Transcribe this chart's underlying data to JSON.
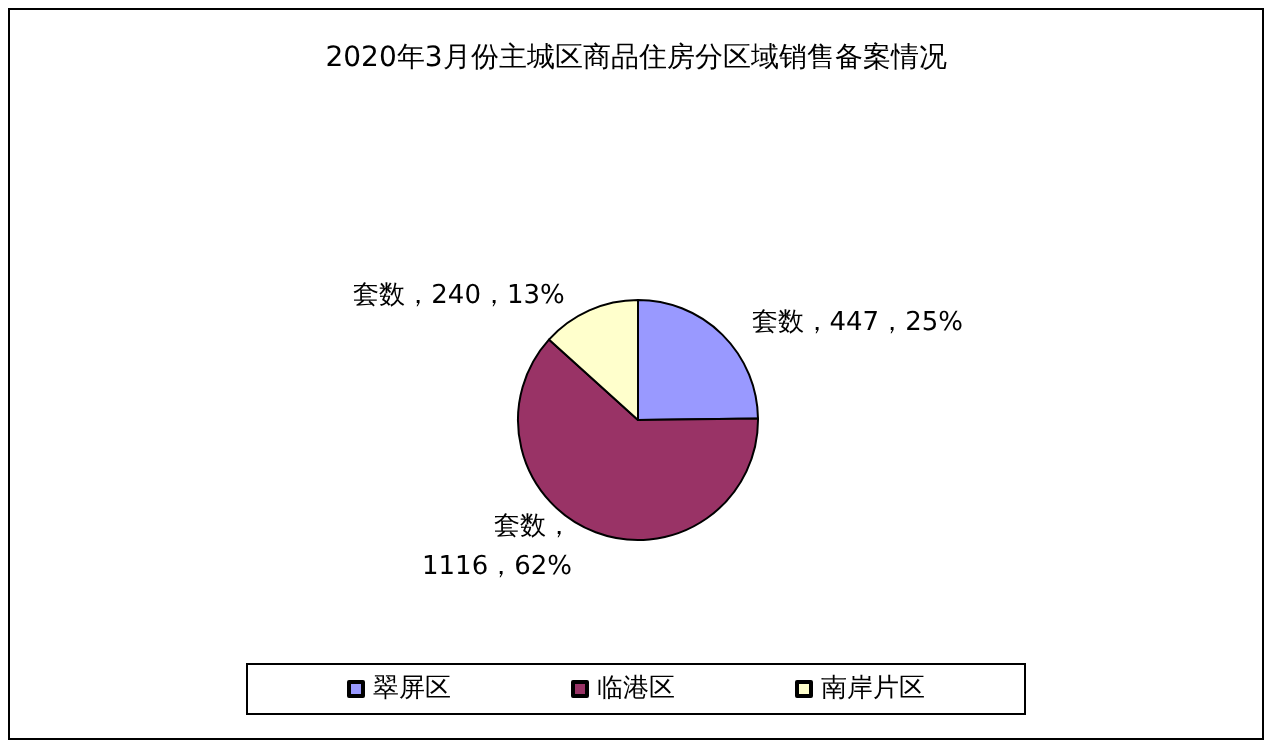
{
  "chart_data": {
    "type": "pie",
    "title": "2020年3月份主城区商品住房分区域销售备案情况",
    "categories": [
      "翠屏区",
      "临港区",
      "南岸片区"
    ],
    "values": [
      447,
      1116,
      240
    ],
    "colors": [
      "#9999ff",
      "#993366",
      "#ffffcc"
    ],
    "value_labels": [
      "套数，447，25%",
      "套数，\n1116，62%",
      "套数，240，13%"
    ],
    "legend": "bottom"
  }
}
